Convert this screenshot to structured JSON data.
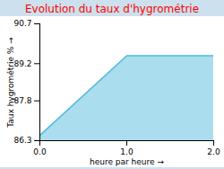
{
  "chart_data": {
    "type": "area",
    "title": "Evolution du taux d'hygrométrie",
    "x_label": "heure par heure",
    "y_label": "Taux hygrométrie %",
    "x": [
      0,
      1,
      2
    ],
    "values": [
      86.5,
      89.5,
      89.5
    ],
    "color": "#55bbdd",
    "xlim": [
      0,
      2
    ],
    "ylim": [
      86.3,
      90.7
    ],
    "xticks": [
      0,
      1,
      2
    ],
    "yticks": [
      86.3,
      87.8,
      89.2,
      90.7
    ],
    "grid": false
  }
}
